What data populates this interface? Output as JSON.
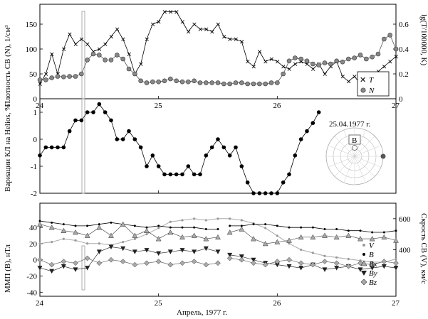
{
  "chart_data": [
    {
      "type": "line",
      "panel": "top",
      "ylabel": "Плотность СВ (N), 1/см³",
      "y2label": "lg(T/100000, K)",
      "xlim": [
        24,
        27
      ],
      "ylim": [
        0,
        190
      ],
      "y2lim": [
        0,
        0.76
      ],
      "xticks": [
        "24",
        "25",
        "26",
        "27"
      ],
      "yticks": [
        "0",
        "50",
        "100",
        "150"
      ],
      "y2ticks": [
        "0",
        "0.2",
        "0.4",
        "0.6"
      ],
      "legend": {
        "position": "bottom-right",
        "entries": [
          "T",
          "N"
        ]
      },
      "series": [
        {
          "name": "T",
          "marker": "x",
          "x": [
            24.0,
            24.05,
            24.1,
            24.15,
            24.2,
            24.25,
            24.3,
            24.35,
            24.4,
            24.45,
            24.5,
            24.55,
            24.6,
            24.65,
            24.7,
            24.75,
            24.8,
            24.85,
            24.9,
            24.95,
            25.0,
            25.05,
            25.1,
            25.15,
            25.2,
            25.25,
            25.3,
            25.35,
            25.4,
            25.45,
            25.5,
            25.55,
            25.6,
            25.65,
            25.7,
            25.75,
            25.8,
            25.85,
            25.9,
            25.95,
            26.0,
            26.05,
            26.1,
            26.15,
            26.2,
            26.25,
            26.3,
            26.35,
            26.4,
            26.45,
            26.5,
            26.55,
            26.6,
            26.65,
            26.7,
            26.75,
            26.8,
            26.85,
            26.9,
            26.95,
            27.0
          ],
          "y": [
            0.12,
            0.2,
            0.36,
            0.2,
            0.4,
            0.52,
            0.44,
            0.48,
            0.44,
            0.38,
            0.4,
            0.44,
            0.5,
            0.56,
            0.48,
            0.36,
            0.2,
            0.28,
            0.48,
            0.6,
            0.62,
            0.7,
            0.7,
            0.7,
            0.62,
            0.54,
            0.6,
            0.56,
            0.56,
            0.54,
            0.6,
            0.5,
            0.48,
            0.48,
            0.46,
            0.3,
            0.26,
            0.38,
            0.3,
            0.32,
            0.3,
            0.26,
            0.24,
            0.28,
            0.3,
            0.28,
            0.24,
            0.28,
            0.2,
            0.26,
            0.3,
            0.18,
            0.14,
            0.18,
            0.12,
            0.18,
            0.16,
            0.22,
            0.26,
            0.3,
            0.34
          ]
        },
        {
          "name": "N",
          "marker": "circle",
          "x": [
            24.0,
            24.05,
            24.1,
            24.15,
            24.2,
            24.25,
            24.3,
            24.35,
            24.4,
            24.45,
            24.5,
            24.55,
            24.6,
            24.65,
            24.7,
            24.75,
            24.8,
            24.85,
            24.9,
            24.95,
            25.0,
            25.05,
            25.1,
            25.15,
            25.2,
            25.25,
            25.3,
            25.35,
            25.4,
            25.45,
            25.5,
            25.55,
            25.6,
            25.65,
            25.7,
            25.75,
            25.8,
            25.85,
            25.9,
            25.95,
            26.0,
            26.05,
            26.1,
            26.15,
            26.2,
            26.25,
            26.3,
            26.35,
            26.4,
            26.45,
            26.5,
            26.55,
            26.6,
            26.65,
            26.7,
            26.75,
            26.8,
            26.85,
            26.9,
            26.95,
            27.0
          ],
          "y": [
            38,
            38,
            42,
            45,
            44,
            45,
            45,
            50,
            78,
            90,
            88,
            78,
            78,
            88,
            80,
            60,
            50,
            36,
            32,
            34,
            34,
            36,
            40,
            36,
            34,
            34,
            36,
            32,
            32,
            32,
            32,
            30,
            30,
            32,
            32,
            30,
            30,
            30,
            30,
            32,
            32,
            50,
            76,
            82,
            80,
            76,
            70,
            68,
            72,
            70,
            76,
            74,
            80,
            82,
            88,
            80,
            84,
            90,
            120,
            128,
            100
          ]
        }
      ],
      "inset": {
        "date": "25.04.1977 г.",
        "label": "B"
      }
    },
    {
      "type": "line",
      "panel": "middle",
      "ylabel": "Вариации КЛ на Helios, %",
      "xlim": [
        24,
        27
      ],
      "ylim": [
        -2,
        1.5
      ],
      "yticks": [
        "-2",
        "-1",
        "0",
        "1"
      ],
      "series": [
        {
          "name": "",
          "marker": "circle",
          "x": [
            24.0,
            24.05,
            24.1,
            24.15,
            24.2,
            24.25,
            24.3,
            24.35,
            24.4,
            24.45,
            24.5,
            24.55,
            24.6,
            24.65,
            24.7,
            24.75,
            24.8,
            24.85,
            24.9,
            24.95,
            25.0,
            25.05,
            25.1,
            25.15,
            25.2,
            25.25,
            25.3,
            25.35,
            25.4,
            25.45,
            25.5,
            25.55,
            25.6,
            25.65,
            25.7,
            25.75,
            25.8,
            25.85,
            25.9,
            25.95,
            26.0,
            26.05,
            26.1,
            26.15,
            26.2,
            26.25,
            26.3,
            26.35
          ],
          "y": [
            -0.6,
            -0.3,
            -0.3,
            -0.3,
            -0.3,
            0.3,
            0.7,
            0.7,
            1.0,
            1.0,
            1.3,
            1.0,
            0.7,
            0.0,
            0.0,
            0.3,
            0.0,
            -0.3,
            -1.0,
            -0.6,
            -1.0,
            -1.3,
            -1.3,
            -1.3,
            -1.3,
            -1.0,
            -1.3,
            -1.3,
            -0.6,
            -0.3,
            0.0,
            -0.3,
            -0.6,
            -0.3,
            -1.0,
            -1.6,
            -2.0,
            -2.0,
            -2.0,
            -2.0,
            -2.0,
            -1.6,
            -1.3,
            -0.6,
            0.0,
            0.3,
            0.6,
            1.0
          ]
        }
      ]
    },
    {
      "type": "line",
      "panel": "bottom",
      "xlabel": "Апрель, 1977 г.",
      "ylabel": "ММП (B), нТл",
      "y2label": "Скрость СВ (V), км/с",
      "xlim": [
        24,
        27
      ],
      "ylim": [
        -45,
        70
      ],
      "y2lim": [
        100,
        700
      ],
      "xticks": [
        "24",
        "25",
        "26",
        "27"
      ],
      "yticks": [
        "-40",
        "-20",
        "0",
        "20",
        "40"
      ],
      "y2ticks": [
        "400",
        "600"
      ],
      "legend": {
        "position": "bottom-right",
        "entries": [
          "V",
          "B",
          "Bx",
          "By",
          "Bz"
        ]
      },
      "series": [
        {
          "name": "V",
          "marker": "small-circle",
          "x": [
            24.0,
            24.1,
            24.2,
            24.3,
            24.4,
            24.5,
            24.6,
            24.7,
            24.8,
            24.9,
            25.0,
            25.1,
            25.2,
            25.3,
            25.4,
            25.5,
            25.6,
            25.7,
            25.8,
            25.9,
            26.0,
            26.1,
            26.2,
            26.3,
            26.4,
            26.5,
            26.6,
            26.7,
            26.8,
            26.9,
            27.0
          ],
          "y": [
            440,
            450,
            470,
            460,
            440,
            440,
            430,
            450,
            470,
            500,
            540,
            580,
            590,
            600,
            590,
            600,
            600,
            590,
            570,
            540,
            490,
            440,
            400,
            380,
            360,
            350,
            340,
            330,
            320,
            320,
            340
          ]
        },
        {
          "name": "B",
          "marker": "dot",
          "x": [
            24.0,
            24.1,
            24.2,
            24.3,
            24.4,
            24.5,
            24.6,
            24.7,
            24.8,
            24.9,
            25.0,
            25.1,
            25.2,
            25.3,
            25.4,
            25.5,
            25.55,
            25.6,
            25.7,
            25.8,
            25.9,
            26.0,
            26.1,
            26.2,
            26.3,
            26.4,
            26.5,
            26.6,
            26.7,
            26.8,
            26.9,
            27.0
          ],
          "y": [
            48,
            46,
            44,
            42,
            42,
            44,
            46,
            44,
            42,
            40,
            42,
            40,
            40,
            40,
            38,
            38,
            null,
            42,
            42,
            44,
            44,
            42,
            40,
            40,
            40,
            38,
            38,
            36,
            36,
            34,
            34,
            36
          ]
        },
        {
          "name": "Bx",
          "marker": "triangle-up",
          "x": [
            24.0,
            24.1,
            24.2,
            24.3,
            24.4,
            24.5,
            24.6,
            24.7,
            24.8,
            24.9,
            25.0,
            25.1,
            25.2,
            25.3,
            25.4,
            25.5,
            25.55,
            25.6,
            25.7,
            25.8,
            25.9,
            26.0,
            26.1,
            26.2,
            26.3,
            26.4,
            26.5,
            26.6,
            26.7,
            26.8,
            26.9,
            27.0
          ],
          "y": [
            44,
            40,
            36,
            34,
            30,
            40,
            30,
            44,
            30,
            36,
            26,
            34,
            28,
            30,
            26,
            28,
            null,
            34,
            38,
            26,
            20,
            22,
            24,
            28,
            28,
            30,
            28,
            30,
            26,
            26,
            28,
            24
          ]
        },
        {
          "name": "By",
          "marker": "triangle-down",
          "x": [
            24.0,
            24.1,
            24.2,
            24.3,
            24.4,
            24.5,
            24.6,
            24.7,
            24.8,
            24.9,
            25.0,
            25.1,
            25.2,
            25.3,
            25.4,
            25.5,
            25.55,
            25.6,
            25.7,
            25.8,
            25.9,
            26.0,
            26.1,
            26.2,
            26.3,
            26.4,
            26.5,
            26.6,
            26.7,
            26.8,
            26.9,
            27.0
          ],
          "y": [
            -10,
            -14,
            -8,
            -12,
            -10,
            10,
            16,
            14,
            10,
            12,
            8,
            10,
            12,
            10,
            14,
            10,
            null,
            6,
            4,
            0,
            -4,
            -6,
            -8,
            -10,
            -6,
            -12,
            -10,
            -8,
            -12,
            -10,
            -8,
            -10
          ]
        },
        {
          "name": "Bz",
          "marker": "diamond",
          "x": [
            24.0,
            24.1,
            24.2,
            24.3,
            24.4,
            24.5,
            24.6,
            24.7,
            24.8,
            24.9,
            25.0,
            25.1,
            25.2,
            25.3,
            25.4,
            25.5,
            25.55,
            25.6,
            25.7,
            25.8,
            25.9,
            26.0,
            26.1,
            26.2,
            26.3,
            26.4,
            26.5,
            26.6,
            26.7,
            26.8,
            26.9,
            27.0
          ],
          "y": [
            0,
            -6,
            -2,
            -4,
            2,
            -4,
            0,
            -2,
            -6,
            -4,
            -2,
            -6,
            -4,
            -2,
            -6,
            -4,
            null,
            2,
            0,
            -4,
            -6,
            -2,
            0,
            -4,
            -6,
            -2,
            -4,
            -8,
            -4,
            -6,
            -2,
            -4
          ]
        }
      ]
    }
  ]
}
